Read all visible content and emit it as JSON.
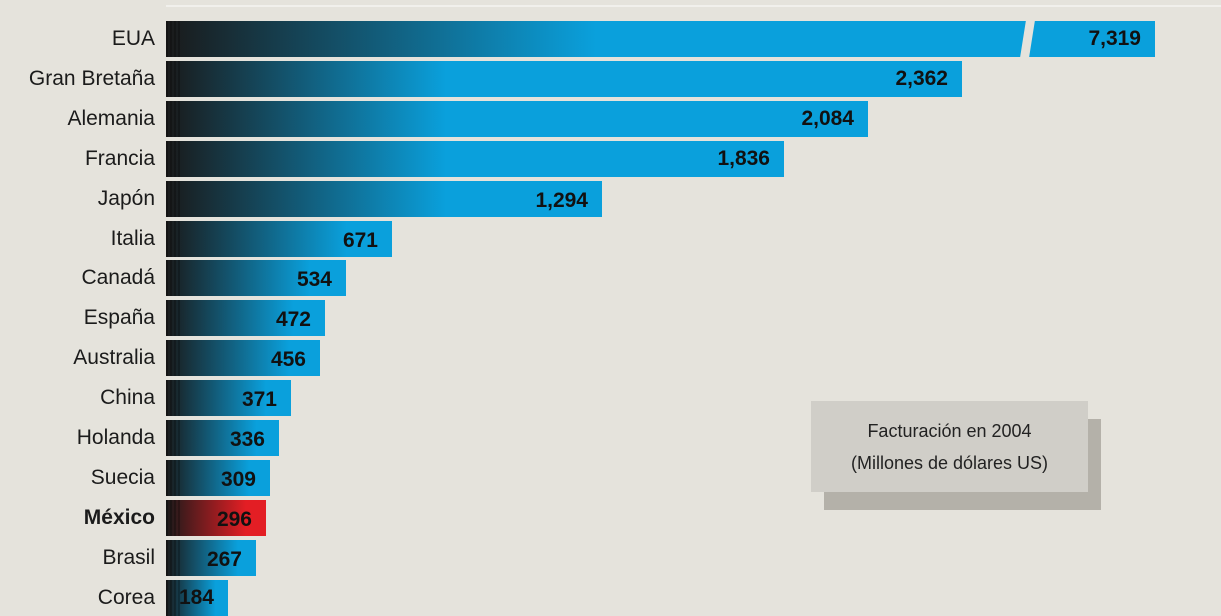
{
  "chart_data": {
    "type": "bar",
    "orientation": "horizontal",
    "categories": [
      "EUA",
      "Gran Bretaña",
      "Alemania",
      "Francia",
      "Japón",
      "Italia",
      "Canadá",
      "España",
      "Australia",
      "China",
      "Holanda",
      "Suecia",
      "México",
      "Brasil",
      "Corea"
    ],
    "values": [
      7319,
      2362,
      2084,
      1836,
      1294,
      671,
      534,
      472,
      456,
      371,
      336,
      309,
      296,
      267,
      184
    ],
    "value_labels": [
      "7,319",
      "2,362",
      "2,084",
      "1,836",
      "1,294",
      "671",
      "534",
      "472",
      "456",
      "371",
      "336",
      "309",
      "296",
      "267",
      "184"
    ],
    "highlight": "México",
    "axis_break": "EUA",
    "legend": {
      "line1": "Facturación en 2004",
      "line2": "(Millones de dólares US)",
      "placement": "bottom-right"
    }
  },
  "colors": {
    "background": "#e5e3dc",
    "bar": "#0aa0dc",
    "bar_dark": "#1a1a1a",
    "highlight": "#e31e24",
    "legend_bg": "#d0cec8",
    "legend_shadow": "#b4b1a9"
  }
}
